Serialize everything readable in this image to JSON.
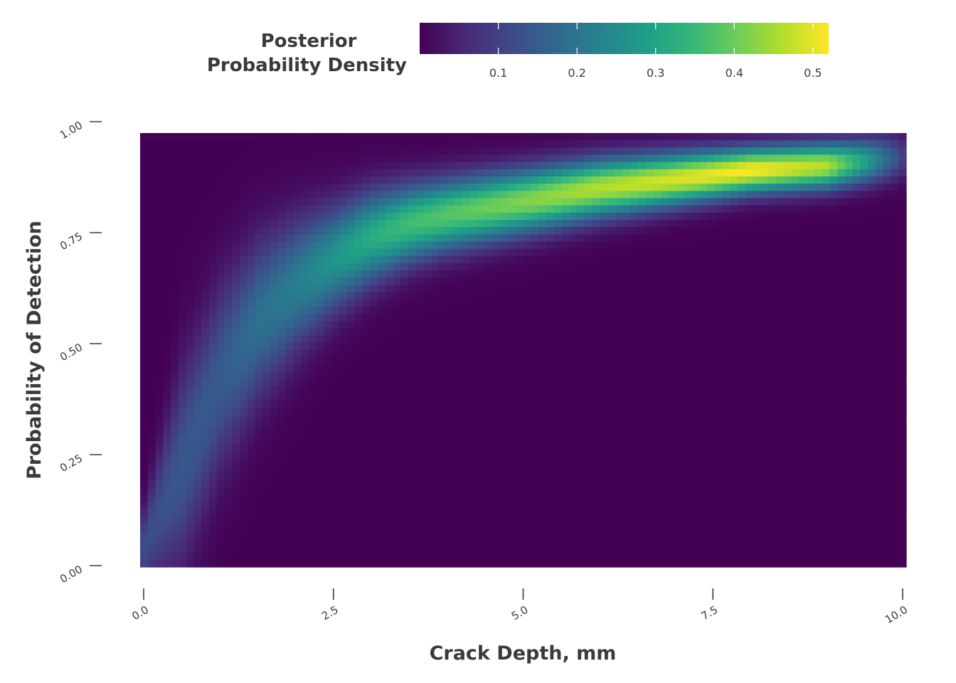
{
  "chart_data": {
    "type": "heatmap",
    "title": "",
    "xlabel": "Crack Depth, mm",
    "ylabel": "Probability of Detection",
    "xlim": [
      0,
      10
    ],
    "ylim": [
      0,
      1
    ],
    "x_ticks": [
      "0.0",
      "2.5",
      "5.0",
      "7.5",
      "10.0"
    ],
    "y_ticks": [
      "0.00",
      "0.25",
      "0.50",
      "0.75",
      "1.00"
    ],
    "colormap": "viridis",
    "color_range": [
      0.0,
      0.52
    ],
    "colorbar": {
      "title_lines": [
        "Posterior",
        "Probability Density"
      ],
      "ticks": [
        "0.1",
        "0.2",
        "0.3",
        "0.4",
        "0.5"
      ],
      "position": "top"
    },
    "grid": false,
    "ridge": [
      {
        "x": 0.0,
        "y": 0.04,
        "value": 0.12,
        "spread": 0.06
      },
      {
        "x": 0.5,
        "y": 0.22,
        "value": 0.14,
        "spread": 0.15
      },
      {
        "x": 1.0,
        "y": 0.42,
        "value": 0.15,
        "spread": 0.14
      },
      {
        "x": 1.5,
        "y": 0.55,
        "value": 0.19,
        "spread": 0.12
      },
      {
        "x": 2.0,
        "y": 0.63,
        "value": 0.22,
        "spread": 0.1
      },
      {
        "x": 2.5,
        "y": 0.69,
        "value": 0.27,
        "spread": 0.08
      },
      {
        "x": 3.0,
        "y": 0.74,
        "value": 0.32,
        "spread": 0.07
      },
      {
        "x": 3.5,
        "y": 0.77,
        "value": 0.36,
        "spread": 0.06
      },
      {
        "x": 4.0,
        "y": 0.79,
        "value": 0.38,
        "spread": 0.055
      },
      {
        "x": 5.0,
        "y": 0.82,
        "value": 0.42,
        "spread": 0.05
      },
      {
        "x": 6.0,
        "y": 0.85,
        "value": 0.46,
        "spread": 0.045
      },
      {
        "x": 7.0,
        "y": 0.87,
        "value": 0.49,
        "spread": 0.04
      },
      {
        "x": 8.0,
        "y": 0.89,
        "value": 0.52,
        "spread": 0.035
      },
      {
        "x": 9.0,
        "y": 0.9,
        "value": 0.46,
        "spread": 0.035
      },
      {
        "x": 9.5,
        "y": 0.91,
        "value": 0.3,
        "spread": 0.035
      },
      {
        "x": 10.0,
        "y": 0.92,
        "value": 0.1,
        "spread": 0.035
      }
    ]
  },
  "colors": {
    "viridis": [
      "#440154",
      "#482878",
      "#3e4a89",
      "#31688e",
      "#26828e",
      "#1f9e89",
      "#35b779",
      "#6ece58",
      "#b5de2b",
      "#fde725"
    ],
    "text": "#3a3a3a",
    "background": "#ffffff"
  }
}
